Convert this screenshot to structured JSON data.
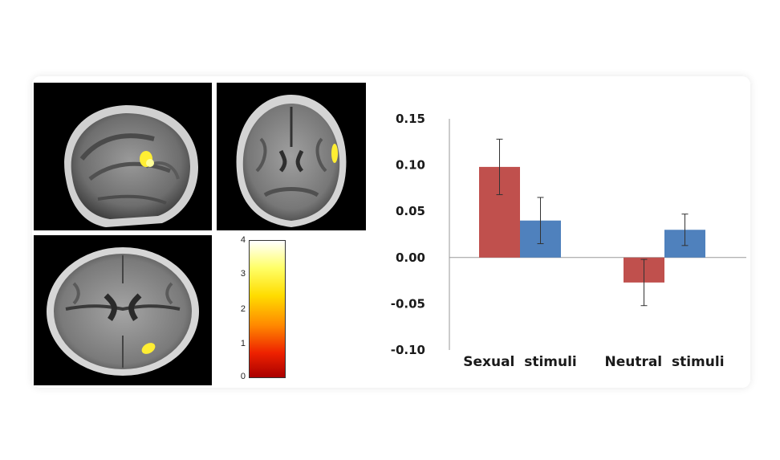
{
  "colorbar": {
    "ticks": [
      "4",
      "3",
      "2",
      "1",
      "0"
    ],
    "range": [
      0,
      4
    ]
  },
  "chart_data": {
    "type": "bar",
    "categories": [
      "Sexual  stimuli",
      "Neutral  stimuli"
    ],
    "series": [
      {
        "color": "#c0504d",
        "values": [
          0.098,
          -0.027
        ],
        "error": [
          0.03,
          0.025
        ]
      },
      {
        "color": "#4f81bd",
        "values": [
          0.04,
          0.03
        ],
        "error": [
          0.025,
          0.017
        ]
      }
    ],
    "yticks": [
      "0.15",
      "0.10",
      "0.05",
      "0.00",
      "-0.05",
      "-0.10"
    ],
    "ylim": [
      -0.1,
      0.15
    ],
    "title": "",
    "xlabel": "",
    "ylabel": "",
    "grid": false
  }
}
